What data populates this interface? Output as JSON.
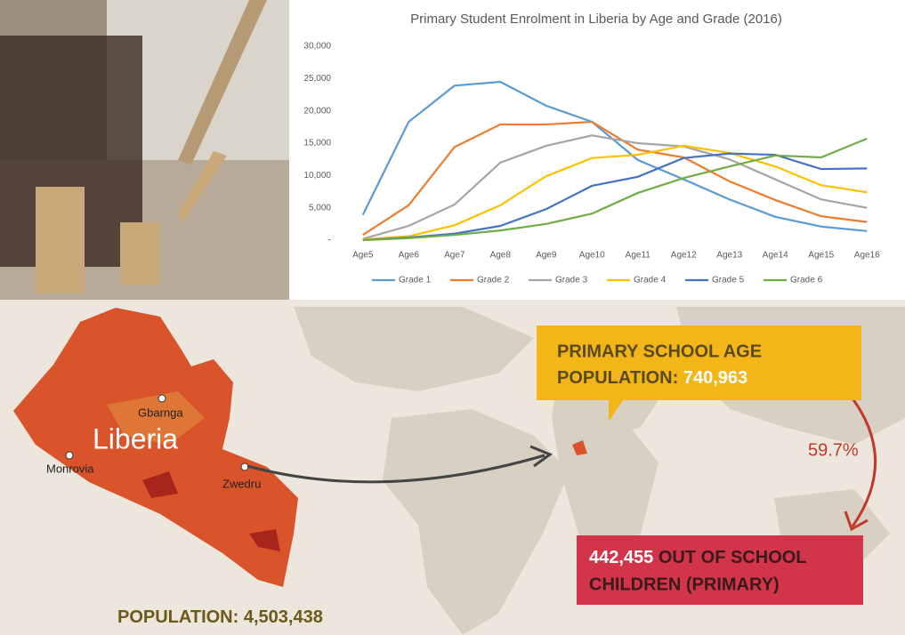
{
  "chart_data": {
    "type": "line",
    "title": "Primary Student Enrolment in Liberia by Age and Grade (2016)",
    "categories": [
      "Age5",
      "Age6",
      "Age7",
      "Age8",
      "Age9",
      "Age10",
      "Age11",
      "Age12",
      "Age13",
      "Age14",
      "Age15",
      "Age16"
    ],
    "series": [
      {
        "name": "Grade 1",
        "color": "#5b9bd5",
        "values": [
          3900,
          18300,
          23900,
          24500,
          20800,
          18300,
          12400,
          9400,
          6300,
          3600,
          2100,
          1400
        ]
      },
      {
        "name": "Grade 2",
        "color": "#ed7d31",
        "values": [
          800,
          5400,
          14400,
          17900,
          17900,
          18300,
          14000,
          12800,
          9100,
          6200,
          3700,
          2800
        ]
      },
      {
        "name": "Grade 3",
        "color": "#a5a5a5",
        "values": [
          200,
          2200,
          5500,
          12000,
          14600,
          16200,
          15000,
          14500,
          12500,
          9400,
          6300,
          5000
        ]
      },
      {
        "name": "Grade 4",
        "color": "#ffc000",
        "values": [
          100,
          600,
          2300,
          5400,
          9900,
          12700,
          13200,
          14600,
          13500,
          11400,
          8500,
          7400
        ]
      },
      {
        "name": "Grade 5",
        "color": "#4472c4",
        "values": [
          0,
          400,
          1000,
          2200,
          4800,
          8400,
          9800,
          12700,
          13400,
          13200,
          11000,
          11100
        ]
      },
      {
        "name": "Grade 6",
        "color": "#70ad47",
        "values": [
          0,
          300,
          800,
          1500,
          2500,
          4100,
          7300,
          9600,
          11400,
          13100,
          12800,
          15700
        ]
      }
    ],
    "ylim": [
      0,
      30000
    ],
    "yticks": [
      {
        "value": 0,
        "label": "-"
      },
      {
        "value": 5000,
        "label": "5,000"
      },
      {
        "value": 10000,
        "label": "10,000"
      },
      {
        "value": 15000,
        "label": "15,000"
      },
      {
        "value": 20000,
        "label": "20,000"
      },
      {
        "value": 25000,
        "label": "25,000"
      },
      {
        "value": 30000,
        "label": "30,000"
      }
    ],
    "grid": false,
    "legend": "bottom"
  },
  "infographic": {
    "country": "Liberia",
    "cities": [
      "Gbarnga",
      "Monrovia",
      "Zwedru"
    ],
    "population_label": "POPULATION:",
    "population_value": "4,503,438",
    "school_age_line1": "PRIMARY SCHOOL AGE",
    "school_age_label": "POPULATION:",
    "school_age_value": "740,963",
    "share": "59.7%",
    "out_of_school_value": "442,455",
    "out_of_school_line1": "OUT OF SCHOOL",
    "out_of_school_line2": "CHILDREN (PRIMARY)"
  }
}
